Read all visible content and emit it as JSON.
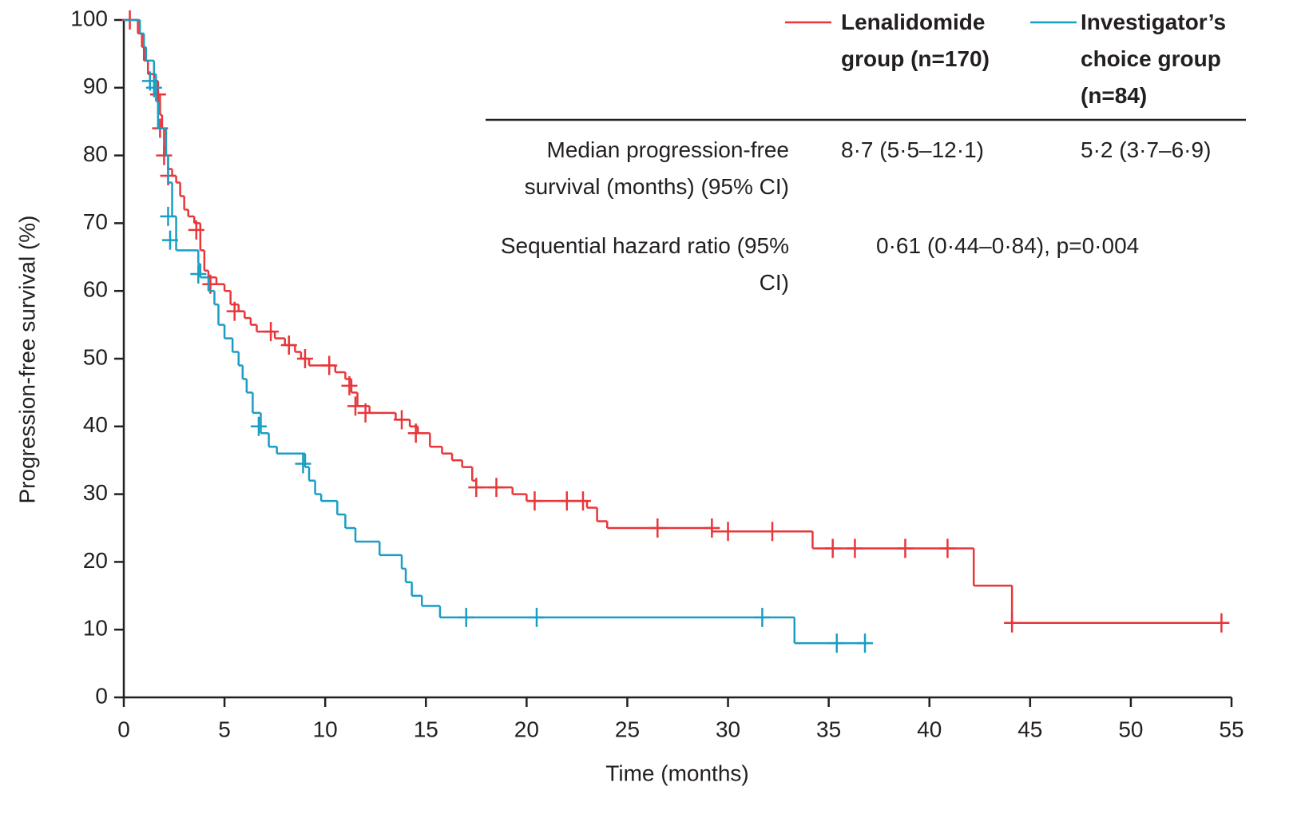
{
  "chart_data": {
    "type": "step",
    "xlabel": "Time (months)",
    "ylabel": "Progression-free survival (%)",
    "xlim": [
      0,
      55
    ],
    "ylim": [
      0,
      100
    ],
    "xticks": [
      0,
      5,
      10,
      15,
      20,
      25,
      30,
      35,
      40,
      45,
      50,
      55
    ],
    "yticks": [
      0,
      10,
      20,
      30,
      40,
      50,
      60,
      70,
      80,
      90,
      100
    ],
    "series": [
      {
        "name": "Lenalidomide group (n=170)",
        "color": "#e8363a",
        "x": [
          0,
          0.7,
          0.9,
          1.0,
          1.2,
          1.5,
          1.7,
          1.8,
          1.9,
          2.0,
          2.2,
          2.4,
          2.6,
          2.8,
          3.0,
          3.2,
          3.5,
          3.8,
          4.0,
          4.2,
          4.6,
          5.0,
          5.3,
          5.7,
          6.0,
          6.3,
          6.6,
          7.5,
          8.0,
          8.5,
          8.8,
          9.2,
          10.5,
          11.0,
          11.3,
          11.6,
          12.2,
          13.5,
          14.2,
          14.6,
          15.2,
          15.8,
          16.3,
          16.8,
          17.3,
          17.5,
          19.3,
          20.0,
          23.0,
          23.5,
          24.0,
          29.2,
          34.2,
          42.2,
          44.1,
          54.5
        ],
        "values": [
          100,
          98,
          96,
          94,
          92,
          91,
          89,
          86,
          84,
          80,
          78,
          77,
          76,
          74,
          72,
          71,
          70,
          66,
          63,
          62,
          61,
          60,
          58,
          57,
          56,
          55,
          54,
          53,
          52,
          51,
          50,
          49,
          48,
          47,
          45,
          43,
          42,
          41,
          40,
          39,
          37,
          36,
          35,
          34,
          32,
          31,
          30,
          29,
          28,
          26,
          25,
          24.5,
          22,
          16.5,
          11,
          11
        ],
        "censored_x": [
          0.3,
          1.7,
          1.8,
          2.0,
          2.2,
          3.6,
          4.3,
          5.5,
          7.3,
          8.2,
          9.0,
          10.2,
          11.2,
          11.5,
          12.0,
          13.8,
          14.5,
          17.5,
          18.5,
          20.4,
          22.0,
          22.8,
          26.5,
          29.2,
          30.0,
          32.2,
          35.2,
          36.3,
          38.8,
          40.9,
          44.1,
          54.5
        ],
        "censored_values": [
          100,
          89,
          84,
          80,
          77,
          69,
          61,
          57,
          54,
          52,
          50,
          49,
          46,
          43,
          42,
          41,
          39,
          31,
          31,
          29,
          29,
          29,
          25,
          25,
          24.5,
          24.5,
          22,
          22,
          22,
          22,
          11,
          11
        ]
      },
      {
        "name": "Investigator’s choice group (n=84)",
        "color": "#1a9ec4",
        "x": [
          0,
          0.8,
          1.0,
          1.1,
          1.5,
          1.6,
          1.7,
          2.1,
          2.2,
          2.4,
          2.6,
          3.7,
          3.8,
          4.2,
          4.5,
          4.7,
          5.0,
          5.4,
          5.7,
          5.9,
          6.1,
          6.4,
          6.8,
          7.2,
          7.6,
          9.0,
          9.2,
          9.5,
          9.8,
          10.6,
          11.0,
          11.5,
          12.7,
          13.8,
          14.0,
          14.3,
          14.8,
          15.7,
          33.3,
          37.0
        ],
        "values": [
          100,
          98,
          96,
          94,
          92,
          88,
          84,
          80,
          76,
          71,
          66,
          64,
          62,
          60,
          58,
          55,
          53,
          51,
          49,
          47,
          45,
          42,
          39,
          37,
          36,
          34,
          32,
          30,
          29,
          27,
          25,
          23,
          21,
          19,
          17,
          15,
          13.5,
          11.8,
          8,
          8
        ],
        "censored_x": [
          1.3,
          1.5,
          2.2,
          2.3,
          3.7,
          6.7,
          8.9,
          17.0,
          20.5,
          31.7,
          35.4,
          36.8
        ],
        "censored_values": [
          91,
          90,
          71,
          67.5,
          62.5,
          40,
          34.5,
          11.8,
          11.8,
          11.8,
          8,
          8
        ]
      }
    ],
    "table": {
      "rows": [
        {
          "label": "Median progression-free survival (months) (95% CI)",
          "values": [
            "8·7 (5·5–12·1)",
            "5·2 (3·7–6·9)"
          ]
        },
        {
          "label": "Sequential hazard ratio (95% CI)",
          "value": "0·61 (0·44–0·84), p=0·004"
        }
      ]
    }
  }
}
